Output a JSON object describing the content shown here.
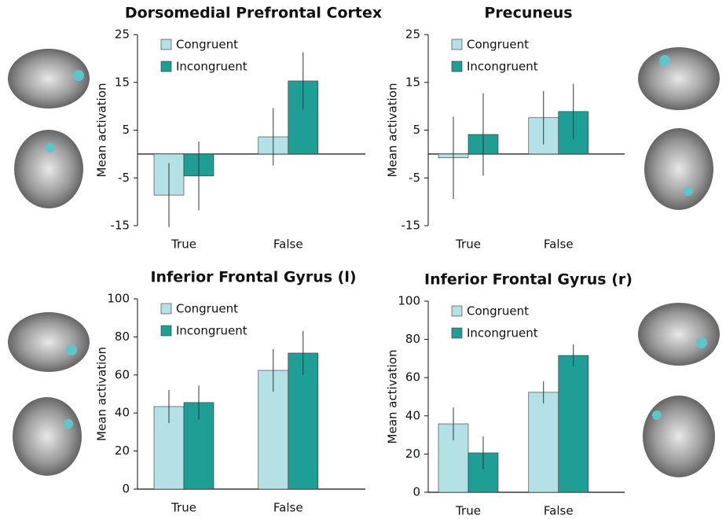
{
  "chart_data": [
    {
      "type": "bar",
      "title": "Dorsomedial Prefrontal Cortex",
      "y_label": "Mean activation",
      "categories": [
        "True",
        "False"
      ],
      "series": [
        {
          "name": "Congruent",
          "color": "#b3e1e6",
          "values": [
            -8.6,
            3.6
          ],
          "errors": [
            6.7,
            6.0
          ]
        },
        {
          "name": "Incongruent",
          "color": "#1f9e96",
          "values": [
            -4.6,
            15.3
          ],
          "errors": [
            7.2,
            6.0
          ]
        }
      ],
      "ylim": [
        -15,
        25
      ],
      "yticks": [
        -15,
        -5,
        5,
        15,
        25
      ],
      "legend": "upper left"
    },
    {
      "type": "bar",
      "title": "Precuneus",
      "y_label": "Mean activation",
      "categories": [
        "True",
        "False"
      ],
      "series": [
        {
          "name": "Congruent",
          "color": "#b3e1e6",
          "values": [
            -0.8,
            7.6
          ],
          "errors": [
            8.6,
            5.6
          ]
        },
        {
          "name": "Incongruent",
          "color": "#1f9e96",
          "values": [
            4.1,
            8.9
          ],
          "errors": [
            8.6,
            5.8
          ]
        }
      ],
      "ylim": [
        -15,
        25
      ],
      "yticks": [
        -15,
        -5,
        5,
        15,
        25
      ],
      "legend": "upper left"
    },
    {
      "type": "bar",
      "title": "Inferior Frontal Gyrus (l)",
      "y_label": "Mean activation",
      "categories": [
        "True",
        "False"
      ],
      "series": [
        {
          "name": "Congruent",
          "color": "#b3e1e6",
          "values": [
            43.4,
            62.4
          ],
          "errors": [
            8.7,
            11.2
          ]
        },
        {
          "name": "Incongruent",
          "color": "#1f9e96",
          "values": [
            45.5,
            71.5
          ],
          "errors": [
            8.9,
            11.6
          ]
        }
      ],
      "ylim": [
        0,
        100
      ],
      "yticks": [
        0,
        20,
        40,
        60,
        80,
        100
      ],
      "legend": "upper left"
    },
    {
      "type": "bar",
      "title": "Inferior Frontal Gyrus (r)",
      "y_label": "Mean activation",
      "categories": [
        "True",
        "False"
      ],
      "series": [
        {
          "name": "Congruent",
          "color": "#b3e1e6",
          "values": [
            35.8,
            52.3
          ],
          "errors": [
            8.6,
            5.8
          ]
        },
        {
          "name": "Incongruent",
          "color": "#1f9e96",
          "values": [
            20.6,
            71.6
          ],
          "errors": [
            8.6,
            5.8
          ]
        }
      ],
      "ylim": [
        0,
        100
      ],
      "yticks": [
        0,
        20,
        40,
        60,
        80,
        100
      ],
      "legend": "upper left"
    }
  ]
}
